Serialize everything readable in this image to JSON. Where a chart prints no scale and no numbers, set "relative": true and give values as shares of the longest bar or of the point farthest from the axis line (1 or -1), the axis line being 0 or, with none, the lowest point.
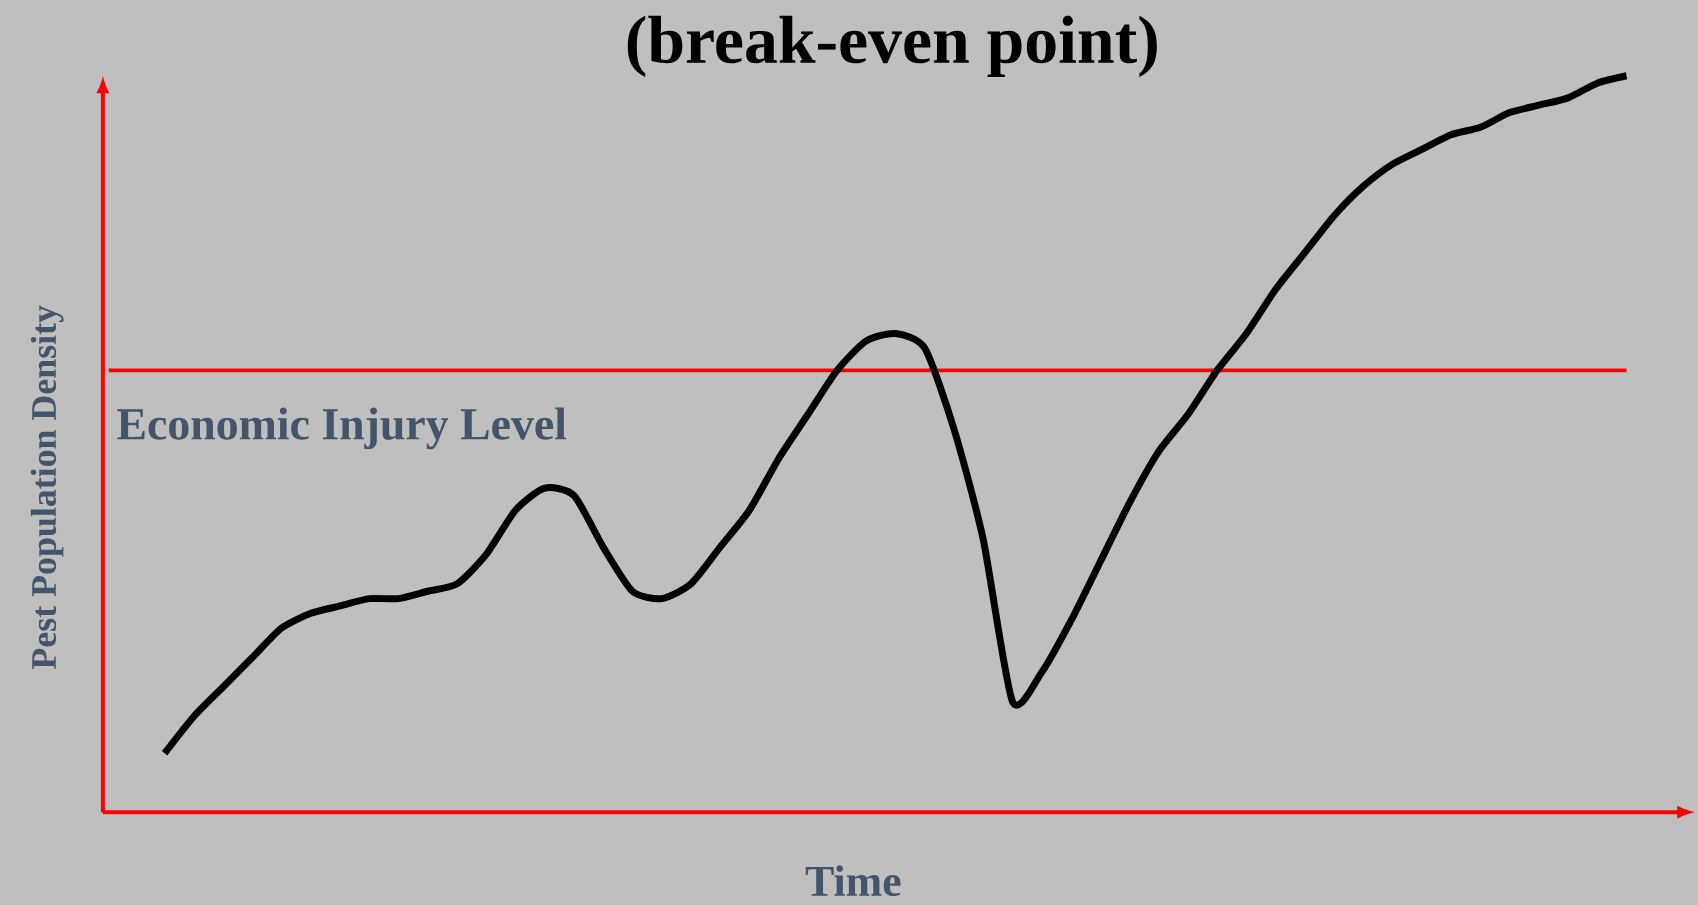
{
  "chart_data": {
    "type": "line",
    "title": "(break-even point)",
    "xlabel": "Time",
    "ylabel": "Pest Population Density",
    "relative": true,
    "categories": [
      null,
      null,
      null,
      null,
      null,
      null,
      null,
      null,
      null,
      null,
      null,
      null,
      null,
      null,
      null,
      null,
      null,
      null,
      null,
      null,
      null,
      null,
      null,
      null,
      null,
      null,
      null,
      null,
      null,
      null,
      null,
      null,
      null,
      null,
      null,
      null,
      null,
      null,
      null,
      null,
      null,
      null,
      null,
      null,
      null,
      null,
      null,
      null,
      null,
      null,
      null
    ],
    "values": [
      0.08,
      0.13,
      0.17,
      0.21,
      0.25,
      0.27,
      0.28,
      0.29,
      0.29,
      0.3,
      0.31,
      0.35,
      0.41,
      0.44,
      0.43,
      0.36,
      0.3,
      0.29,
      0.31,
      0.36,
      0.41,
      0.48,
      0.54,
      0.6,
      0.64,
      0.65,
      0.63,
      0.52,
      0.37,
      0.15,
      0.19,
      0.26,
      0.34,
      0.42,
      0.49,
      0.54,
      0.6,
      0.65,
      0.71,
      0.76,
      0.81,
      0.85,
      0.88,
      0.9,
      0.92,
      0.93,
      0.95,
      0.96,
      0.97,
      0.99,
      1.0
    ],
    "color": "#000000",
    "ref_lines": [
      {
        "axis": "y",
        "value": 0.6,
        "label": "Economic Injury Level",
        "color": "#ff0000"
      }
    ]
  }
}
